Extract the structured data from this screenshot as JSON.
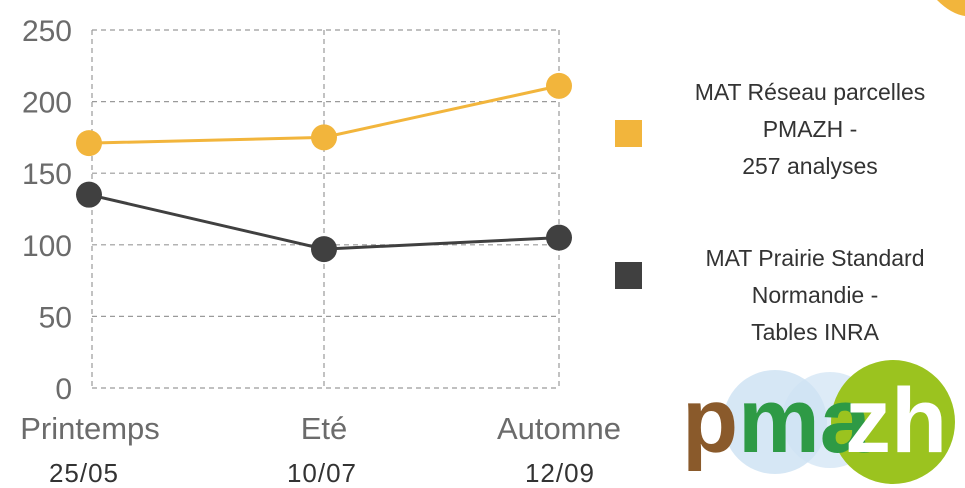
{
  "chart_data": {
    "type": "line",
    "title": "",
    "xlabel": "",
    "ylabel": "",
    "ylim": [
      0,
      250
    ],
    "yticks": [
      "0",
      "50",
      "100",
      "150",
      "200",
      "250"
    ],
    "grid": true,
    "legend_position": "right",
    "categories": [
      {
        "label": "Printemps",
        "date": "25/05"
      },
      {
        "label": "Eté",
        "date": "10/07"
      },
      {
        "label": "Automne",
        "date": "12/09"
      }
    ],
    "series": [
      {
        "name_lines": [
          "MAT Réseau parcelles",
          "PMAZH -",
          "257 analyses"
        ],
        "color": "#f2b53c",
        "values": [
          171,
          175,
          211
        ]
      },
      {
        "name_lines": [
          "MAT Prairie Standard",
          "Normandie -",
          "Tables INRA"
        ],
        "color": "#404040",
        "values": [
          135,
          97,
          105
        ]
      }
    ]
  },
  "logo": {
    "text_p": "p",
    "text_ma": "ma",
    "text_zh": "zh",
    "color_brown": "#8a5a2b",
    "color_green": "#2e9a45",
    "color_lime": "#9bc31f",
    "color_bubble": "#cfe3f3"
  }
}
